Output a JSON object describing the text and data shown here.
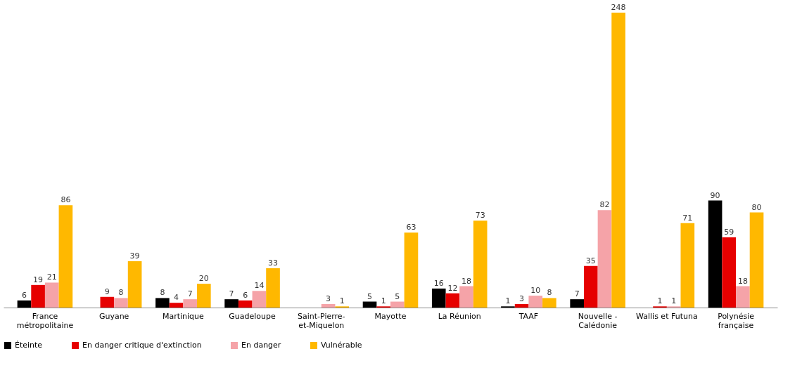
{
  "chart_data": {
    "type": "bar",
    "categories": [
      "France\nmétropolitaine",
      "Guyane",
      "Martinique",
      "Guadeloupe",
      "Saint-Pierre-\net-Miquelon",
      "Mayotte",
      "La Réunion",
      "TAAF",
      "Nouvelle -\nCalédonie",
      "Wallis et Futuna",
      "Polynésie\nfrançaise"
    ],
    "series": [
      {
        "name": "Éteinte",
        "color": "#000000",
        "values": [
          6,
          null,
          8,
          7,
          null,
          5,
          16,
          1,
          7,
          null,
          90
        ]
      },
      {
        "name": "En danger critique d'extinction",
        "color": "#e60000",
        "values": [
          19,
          9,
          4,
          6,
          null,
          1,
          12,
          3,
          35,
          1,
          59
        ]
      },
      {
        "name": "En danger",
        "color": "#f5a3a8",
        "values": [
          21,
          8,
          7,
          14,
          3,
          5,
          18,
          10,
          82,
          1,
          18
        ]
      },
      {
        "name": "Vulnérable",
        "color": "#ffb800",
        "values": [
          86,
          39,
          20,
          33,
          1,
          63,
          73,
          8,
          248,
          71,
          80
        ]
      }
    ],
    "data_labels": true,
    "legend": "bottom",
    "grid": false
  }
}
